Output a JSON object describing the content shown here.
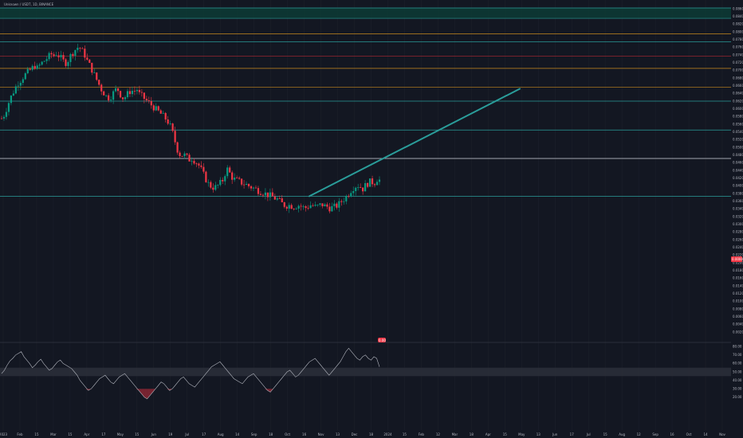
{
  "header": {
    "title": "Unknown / USDT, 1D, BINANCE"
  },
  "colors": {
    "background": "#131722",
    "up": "#089981",
    "down": "#f23645",
    "grid": "#1e222d",
    "teal_line": "#2a9d9a",
    "orange_line": "#c88a1e",
    "red_line": "#b22833",
    "white_line": "#d1d4dc",
    "zone_fill": "#0d3b35",
    "rsi_line": "#b2b5be"
  },
  "price_tag": {
    "value": "0.0000"
  },
  "marker_badge": {
    "label": "0.00"
  },
  "chart_data": [
    {
      "type": "candlestick",
      "title": "",
      "xlabel": "",
      "ylabel": "",
      "ylim": [
        0.0,
        0.088
      ],
      "y_ticks": [
        0.086,
        0.084,
        0.082,
        0.08,
        0.078,
        0.076,
        0.074,
        0.072,
        0.07,
        0.068,
        0.066,
        0.064,
        0.062,
        0.06,
        0.058,
        0.056,
        0.054,
        0.052,
        0.05,
        0.048,
        0.046,
        0.044,
        0.042,
        0.04,
        0.038,
        0.036,
        0.034,
        0.032,
        0.03,
        0.028,
        0.026,
        0.024,
        0.022,
        0.02,
        0.018,
        0.016,
        0.014,
        0.012,
        0.01,
        0.008,
        0.006,
        0.004,
        0.002
      ],
      "y_tick_labels": [
        "0.0860",
        "0.0840",
        "0.0820",
        "0.0800",
        "0.0780",
        "0.0760",
        "0.0740",
        "0.0720",
        "0.0700",
        "0.0680",
        "0.0660",
        "0.0640",
        "0.0620",
        "0.0600",
        "0.0580",
        "0.0560",
        "0.0540",
        "0.0520",
        "0.0500",
        "0.0480",
        "0.0460",
        "0.0440",
        "0.0420",
        "0.0400",
        "0.0380",
        "0.0360",
        "0.0340",
        "0.0320",
        "0.0300",
        "0.0280",
        "0.0260",
        "0.0240",
        "0.0220",
        "0.0200",
        "0.0180",
        "0.0160",
        "0.0140",
        "0.0120",
        "0.0100",
        "0.0080",
        "0.0060",
        "0.0040",
        "0.0020"
      ],
      "x_ticks": [
        "2023",
        "Feb",
        "15",
        "Mar",
        "15",
        "Apr",
        "17",
        "May",
        "15",
        "Jun",
        "19",
        "Jul",
        "17",
        "Aug",
        "14",
        "Sep",
        "18",
        "Oct",
        "16",
        "Nov",
        "13",
        "Dec",
        "18",
        "2024",
        "15",
        "Feb",
        "12",
        "Mar",
        "18",
        "Apr",
        "15",
        "May",
        "13",
        "Jun",
        "17",
        "Jul",
        "15",
        "Aug",
        "12",
        "Sep",
        "16",
        "Oct",
        "14",
        "Nov"
      ],
      "price_path": [
        0.0575,
        0.0585,
        0.0605,
        0.0625,
        0.064,
        0.0655,
        0.0668,
        0.0675,
        0.0685,
        0.0692,
        0.0698,
        0.0705,
        0.0712,
        0.0705,
        0.0715,
        0.0722,
        0.0728,
        0.0735,
        0.0742,
        0.0738,
        0.0745,
        0.0735,
        0.0728,
        0.0718,
        0.0725,
        0.0738,
        0.0748,
        0.0756,
        0.0762,
        0.0752,
        0.0742,
        0.0725,
        0.0712,
        0.0698,
        0.0682,
        0.0668,
        0.0652,
        0.0642,
        0.0632,
        0.0628,
        0.0635,
        0.0648,
        0.0652,
        0.0638,
        0.0628,
        0.0632,
        0.0642,
        0.0648,
        0.0645,
        0.0652,
        0.0638,
        0.0632,
        0.0625,
        0.0618,
        0.0612,
        0.0605,
        0.0598,
        0.0592,
        0.0585,
        0.0578,
        0.057,
        0.0558,
        0.0538,
        0.0512,
        0.0488,
        0.0478,
        0.0482,
        0.0475,
        0.0468,
        0.0472,
        0.0465,
        0.0458,
        0.0448,
        0.0432,
        0.0418,
        0.0405,
        0.0398,
        0.0395,
        0.0398,
        0.0405,
        0.0412,
        0.0432,
        0.0445,
        0.0428,
        0.0418,
        0.0415,
        0.0412,
        0.0408,
        0.0405,
        0.0402,
        0.0398,
        0.0395,
        0.0392,
        0.0388,
        0.0385,
        0.0382,
        0.0378,
        0.0375,
        0.0372,
        0.0368,
        0.0365,
        0.0358,
        0.0352,
        0.0348,
        0.035,
        0.0348,
        0.0346,
        0.0348,
        0.035,
        0.0345,
        0.0342,
        0.0346,
        0.035,
        0.0348,
        0.0345,
        0.0348,
        0.0352,
        0.0348,
        0.0346,
        0.0342,
        0.0344,
        0.0346,
        0.035,
        0.0358,
        0.0365,
        0.0372,
        0.0382,
        0.0392,
        0.0398,
        0.0402,
        0.0398,
        0.0392,
        0.0402,
        0.0408,
        0.0412,
        0.0405,
        0.0418,
        0.0415
      ],
      "horizontal_levels": [
        {
          "price": 0.0862,
          "color": "teal"
        },
        {
          "price": 0.0835,
          "color": "teal"
        },
        {
          "price": 0.0795,
          "color": "orange"
        },
        {
          "price": 0.0774,
          "color": "teal"
        },
        {
          "price": 0.0737,
          "color": "red"
        },
        {
          "price": 0.0705,
          "color": "orange"
        },
        {
          "price": 0.0656,
          "color": "orange"
        },
        {
          "price": 0.062,
          "color": "teal"
        },
        {
          "price": 0.0545,
          "color": "teal"
        },
        {
          "price": 0.0471,
          "color": "white"
        },
        {
          "price": 0.0373,
          "color": "teal"
        }
      ],
      "zone": {
        "top": 0.0862,
        "bottom": 0.0835
      },
      "trendline": {
        "start": [
          388,
          0.0373
        ],
        "end": [
          652,
          0.0652
        ]
      }
    },
    {
      "type": "line",
      "title": "",
      "xlabel": "",
      "ylabel": "",
      "ylim": [
        0,
        100
      ],
      "y_ticks": [
        80,
        70,
        60,
        50,
        40,
        30,
        20
      ],
      "y_tick_labels": [
        "80.00",
        "70.00",
        "60.00",
        "50.00",
        "40.00",
        "30.00",
        "20.00"
      ],
      "band": [
        45,
        55
      ],
      "values": [
        48,
        52,
        58,
        63,
        66,
        70,
        72,
        74,
        68,
        64,
        60,
        55,
        58,
        62,
        65,
        60,
        56,
        52,
        54,
        58,
        62,
        64,
        60,
        58,
        56,
        54,
        50,
        46,
        40,
        36,
        32,
        28,
        30,
        34,
        38,
        42,
        44,
        46,
        42,
        38,
        36,
        40,
        44,
        46,
        48,
        44,
        40,
        36,
        32,
        28,
        24,
        20,
        18,
        22,
        26,
        30,
        34,
        38,
        36,
        32,
        28,
        30,
        34,
        38,
        42,
        44,
        40,
        36,
        34,
        32,
        36,
        40,
        44,
        48,
        52,
        56,
        58,
        60,
        62,
        58,
        54,
        50,
        46,
        42,
        40,
        38,
        36,
        40,
        44,
        46,
        48,
        44,
        40,
        36,
        32,
        28,
        26,
        30,
        34,
        38,
        42,
        46,
        50,
        52,
        48,
        44,
        46,
        50,
        54,
        58,
        62,
        64,
        66,
        62,
        58,
        54,
        50,
        46,
        50,
        54,
        58,
        62,
        68,
        74,
        78,
        74,
        70,
        66,
        64,
        68,
        70,
        66,
        64,
        68,
        66,
        56
      ]
    }
  ]
}
